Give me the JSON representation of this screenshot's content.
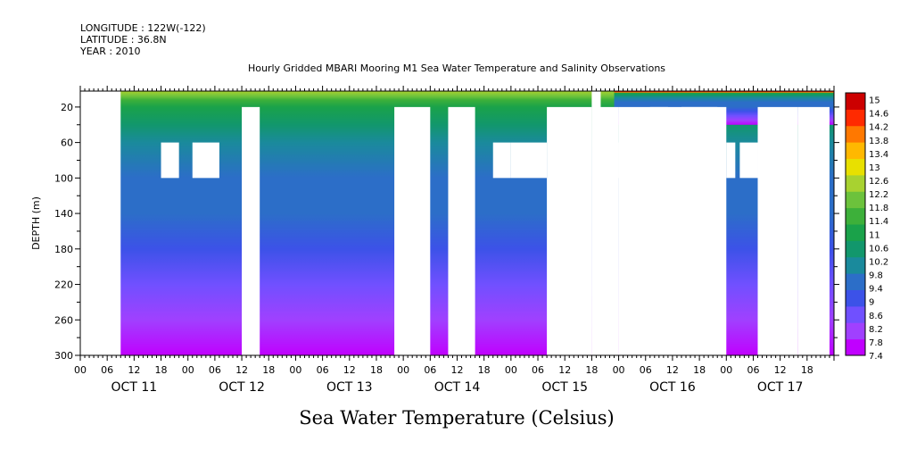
{
  "header": {
    "longitude": "LONGITUDE : 122W(-122)",
    "latitude": "LATITUDE : 36.8N",
    "year": "YEAR : 2010"
  },
  "chart_data": {
    "type": "heatmap",
    "title": "Hourly Gridded MBARI Mooring M1 Sea Water Temperature and Salinity Observations",
    "subtitle": "Sea Water Temperature (Celsius)",
    "xlabel": "",
    "ylabel": "DEPTH (m)",
    "y_ticks": [
      "20",
      "60",
      "100",
      "140",
      "180",
      "220",
      "260",
      "300"
    ],
    "y_range": [
      2,
      300
    ],
    "y_inverted": true,
    "x_range_hours": [
      0,
      168
    ],
    "x_hour_ticks": [
      "00",
      "06",
      "12",
      "18",
      "00",
      "06",
      "12",
      "18",
      "00",
      "06",
      "12",
      "18",
      "00",
      "06",
      "12",
      "18",
      "00",
      "06",
      "12",
      "18",
      "00",
      "06",
      "12",
      "18",
      "00",
      "06",
      "12",
      "18"
    ],
    "x_day_labels": [
      "OCT 11",
      "OCT 12",
      "OCT 13",
      "OCT 14",
      "OCT 15",
      "OCT 16",
      "OCT 17"
    ],
    "colorbar_labels": [
      "15",
      "14.6",
      "14.2",
      "13.8",
      "13.4",
      "13",
      "12.6",
      "12.2",
      "11.8",
      "11.4",
      "11",
      "10.6",
      "10.2",
      "9.8",
      "9.4",
      "9",
      "8.6",
      "8.2",
      "7.8",
      "7.4"
    ],
    "colorbar_range": [
      7.4,
      15.2
    ],
    "colors": [
      "#c000ff",
      "#a040ff",
      "#7050ff",
      "#3c52e8",
      "#2c6ec8",
      "#1a8a9c",
      "#12976c",
      "#1aa24a",
      "#3db03a",
      "#6cc23c",
      "#a8d230",
      "#e8e000",
      "#ffb800",
      "#ff7800",
      "#ff2a00",
      "#cc0000"
    ],
    "temperature_profile": [
      {
        "depth": 2,
        "temp": 12.6
      },
      {
        "depth": 8,
        "temp": 12.2
      },
      {
        "depth": 12,
        "temp": 11.6
      },
      {
        "depth": 20,
        "temp": 11.0
      },
      {
        "depth": 40,
        "temp": 10.5
      },
      {
        "depth": 60,
        "temp": 10.2
      },
      {
        "depth": 100,
        "temp": 9.8
      },
      {
        "depth": 140,
        "temp": 9.4
      },
      {
        "depth": 180,
        "temp": 9.0
      },
      {
        "depth": 220,
        "temp": 8.6
      },
      {
        "depth": 260,
        "temp": 8.2
      },
      {
        "depth": 300,
        "temp": 7.6
      }
    ],
    "warm_surface_periods_hours": [
      [
        119,
        168
      ]
    ],
    "missing_data": [
      {
        "hours": [
          0,
          9
        ],
        "depth": [
          2,
          300
        ]
      },
      {
        "hours": [
          36,
          40
        ],
        "depth": [
          20,
          300
        ]
      },
      {
        "hours": [
          70,
          78
        ],
        "depth": [
          20,
          300
        ]
      },
      {
        "hours": [
          82,
          88
        ],
        "depth": [
          20,
          300
        ]
      },
      {
        "hours": [
          104,
          114
        ],
        "depth": [
          20,
          300
        ]
      },
      {
        "hours": [
          114,
          116
        ],
        "depth": [
          2,
          300
        ]
      },
      {
        "hours": [
          120,
          144
        ],
        "depth": [
          20,
          300
        ]
      },
      {
        "hours": [
          144,
          168
        ],
        "depth": [
          300,
          300
        ]
      },
      {
        "hours": [
          18,
          22
        ],
        "depth": [
          60,
          100
        ]
      },
      {
        "hours": [
          25,
          31
        ],
        "depth": [
          60,
          100
        ]
      },
      {
        "hours": [
          92,
          96
        ],
        "depth": [
          60,
          100
        ]
      },
      {
        "hours": [
          96,
          104
        ],
        "depth": [
          60,
          100
        ]
      },
      {
        "hours": [
          114,
          120
        ],
        "depth": [
          20,
          300
        ]
      },
      {
        "hours": [
          120,
          127
        ],
        "depth": [
          60,
          100
        ]
      },
      {
        "hours": [
          127,
          131
        ],
        "depth": [
          20,
          300
        ]
      },
      {
        "hours": [
          131,
          134
        ],
        "depth": [
          60,
          100
        ]
      },
      {
        "hours": [
          134,
          136
        ],
        "depth": [
          20,
          300
        ]
      },
      {
        "hours": [
          136,
          139
        ],
        "depth": [
          20,
          300
        ]
      },
      {
        "hours": [
          139,
          142
        ],
        "depth": [
          20,
          300
        ]
      },
      {
        "hours": [
          144,
          146
        ],
        "depth": [
          60,
          100
        ]
      },
      {
        "hours": [
          147,
          151
        ],
        "depth": [
          60,
          100
        ]
      },
      {
        "hours": [
          151,
          160
        ],
        "depth": [
          20,
          300
        ]
      },
      {
        "hours": [
          160,
          167
        ],
        "depth": [
          20,
          300
        ]
      }
    ]
  }
}
